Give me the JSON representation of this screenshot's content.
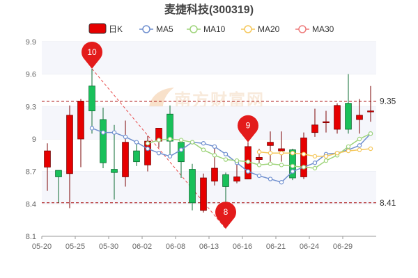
{
  "chart_data": {
    "type": "candlestick",
    "title": "麦捷科技(300319)",
    "ylim": [
      8.1,
      9.9
    ],
    "yticks": [
      "9.9",
      "9.6",
      "9.3",
      "9",
      "8.7",
      "8.4",
      "8.1"
    ],
    "xticks": [
      "05-20",
      "05-25",
      "05-30",
      "06-02",
      "06-08",
      "06-13",
      "06-16",
      "06-21",
      "06-24",
      "06-29"
    ],
    "legend": [
      {
        "key": "kline",
        "label": "日K",
        "color": "#e60000"
      },
      {
        "key": "ma5",
        "label": "MA5",
        "color": "#6f8fcf"
      },
      {
        "key": "ma10",
        "label": "MA10",
        "color": "#9ed47a"
      },
      {
        "key": "ma20",
        "label": "MA20",
        "color": "#f5c75a"
      },
      {
        "key": "ma30",
        "label": "MA30",
        "color": "#ee7b7b"
      }
    ],
    "candles": [
      {
        "o": 8.74,
        "c": 8.89,
        "h": 8.96,
        "l": 8.52
      },
      {
        "o": 8.71,
        "c": 8.65,
        "h": 8.71,
        "l": 8.41
      },
      {
        "o": 8.68,
        "c": 9.22,
        "h": 9.31,
        "l": 8.36
      },
      {
        "o": 9.0,
        "c": 9.35,
        "h": 9.37,
        "l": 8.74
      },
      {
        "o": 9.49,
        "c": 9.26,
        "h": 9.65,
        "l": 9.05
      },
      {
        "o": 9.18,
        "c": 8.78,
        "h": 9.29,
        "l": 8.73
      },
      {
        "o": 8.72,
        "c": 8.69,
        "h": 9.13,
        "l": 8.44
      },
      {
        "o": 8.65,
        "c": 8.97,
        "h": 9.17,
        "l": 8.56
      },
      {
        "o": 8.89,
        "c": 8.79,
        "h": 8.96,
        "l": 8.75
      },
      {
        "o": 8.76,
        "c": 8.98,
        "h": 9.03,
        "l": 8.7
      },
      {
        "o": 8.98,
        "c": 9.1,
        "h": 9.1,
        "l": 8.92
      },
      {
        "o": 9.23,
        "c": 8.98,
        "h": 9.31,
        "l": 8.86
      },
      {
        "o": 8.97,
        "c": 8.79,
        "h": 9.01,
        "l": 8.64
      },
      {
        "o": 8.72,
        "c": 8.41,
        "h": 8.77,
        "l": 8.34
      },
      {
        "o": 8.34,
        "c": 8.64,
        "h": 8.68,
        "l": 8.32
      },
      {
        "o": 8.61,
        "c": 8.73,
        "h": 8.91,
        "l": 8.57
      },
      {
        "o": 8.67,
        "c": 8.56,
        "h": 8.69,
        "l": 8.17
      },
      {
        "o": 8.61,
        "c": 8.65,
        "h": 8.79,
        "l": 8.59
      },
      {
        "o": 8.63,
        "c": 8.93,
        "h": 8.97,
        "l": 8.63
      },
      {
        "o": 8.81,
        "c": 8.83,
        "h": 8.91,
        "l": 8.74
      },
      {
        "o": 8.94,
        "c": 8.97,
        "h": 9.07,
        "l": 8.79
      },
      {
        "o": 8.89,
        "c": 8.91,
        "h": 9.07,
        "l": 8.79
      },
      {
        "o": 8.9,
        "c": 8.64,
        "h": 8.91,
        "l": 8.62
      },
      {
        "o": 8.65,
        "c": 9.01,
        "h": 9.06,
        "l": 8.63
      },
      {
        "o": 9.06,
        "c": 9.13,
        "h": 9.28,
        "l": 9.02
      },
      {
        "o": 9.16,
        "c": 9.16,
        "h": 9.26,
        "l": 9.06
      },
      {
        "o": 9.09,
        "c": 9.31,
        "h": 9.33,
        "l": 9.05
      },
      {
        "o": 9.33,
        "c": 9.09,
        "h": 9.6,
        "l": 9.05
      },
      {
        "o": 9.18,
        "c": 9.22,
        "h": 9.37,
        "l": 9.05
      },
      {
        "o": 9.26,
        "c": 9.26,
        "h": 9.49,
        "l": 9.16
      }
    ],
    "ma5": [
      null,
      null,
      null,
      null,
      9.1,
      9.06,
      9.06,
      9.02,
      8.97,
      8.91,
      8.87,
      8.84,
      8.9,
      8.97,
      8.96,
      8.93,
      8.86,
      8.78,
      8.7,
      8.66,
      8.63,
      8.6,
      8.7,
      8.74,
      8.78,
      8.86,
      8.87,
      8.9,
      8.94,
      9.05
    ],
    "ma10": [
      null,
      null,
      null,
      null,
      null,
      null,
      null,
      null,
      null,
      8.96,
      8.99,
      9.0,
      8.99,
      8.97,
      8.9,
      8.85,
      8.81,
      8.8,
      8.79,
      8.76,
      8.77,
      8.76,
      8.75,
      8.74,
      8.73,
      8.8,
      8.85,
      8.93,
      9.0,
      9.05
    ],
    "ma20": [
      null,
      null,
      null,
      null,
      null,
      null,
      null,
      null,
      null,
      null,
      null,
      null,
      null,
      null,
      null,
      null,
      null,
      null,
      null,
      8.88,
      8.87,
      8.87,
      8.87,
      8.86,
      8.84,
      8.84,
      8.87,
      8.89,
      8.9,
      8.91
    ],
    "ma30": [],
    "reference_lines": [
      {
        "value": 9.35,
        "label": "9.35"
      },
      {
        "value": 8.41,
        "label": "8.41"
      }
    ],
    "markers": [
      {
        "label": "10",
        "index": 4,
        "value": 9.65
      },
      {
        "label": "8",
        "index": 16,
        "value": 8.17
      },
      {
        "label": "9",
        "index": 18,
        "value": 8.97
      }
    ],
    "trend_line": {
      "from_index": 4,
      "from_value": 9.65,
      "to_index": 16,
      "to_value": 8.17
    }
  }
}
